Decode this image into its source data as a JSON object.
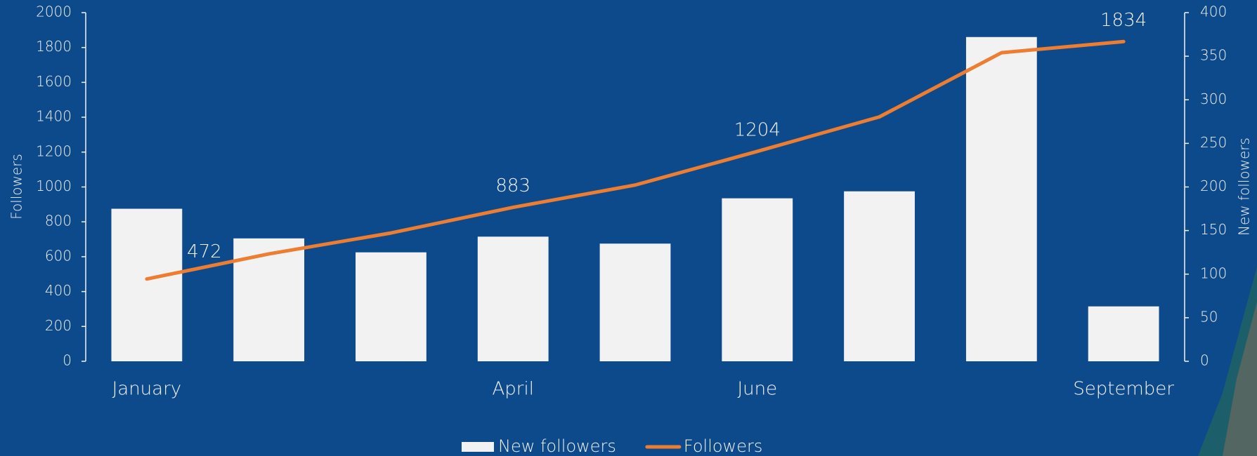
{
  "chart_data": {
    "type": "bar_line",
    "categories": [
      "January",
      null,
      null,
      "April",
      null,
      "June",
      null,
      null,
      "September"
    ],
    "series": [
      {
        "name": "New followers",
        "type": "bar",
        "color": "#f2f2f2",
        "axis": "y2",
        "values": [
          175,
          141,
          125,
          143,
          135,
          187,
          195,
          372,
          63
        ]
      },
      {
        "name": "Followers",
        "type": "line",
        "color": "#ed7d31",
        "axis": "y",
        "values": [
          472,
          616,
          736,
          883,
          1011,
          1204,
          1402,
          1770,
          1834
        ],
        "value_labels": [
          "472",
          null,
          null,
          "883",
          null,
          "1204",
          null,
          null,
          "1834"
        ]
      }
    ],
    "y_label": "Followers",
    "y2_label": "New followers",
    "ylim": [
      0,
      2000
    ],
    "yticks": [
      0,
      200,
      400,
      600,
      800,
      1000,
      1200,
      1400,
      1600,
      1800,
      2000
    ],
    "y2lim": [
      0,
      400
    ],
    "y2ticks": [
      0,
      50,
      100,
      150,
      200,
      250,
      300,
      350,
      400
    ],
    "legend": "bottom"
  }
}
